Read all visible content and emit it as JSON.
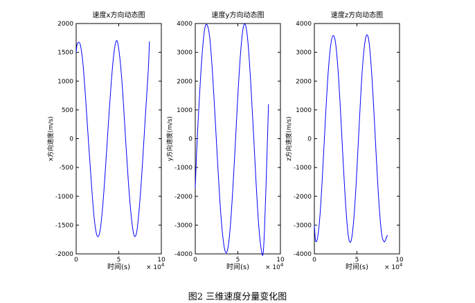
{
  "caption": "图2  三维速度分量变化图",
  "exponent_base": "× 10",
  "exponent_power": "4",
  "chart_data": [
    {
      "type": "line",
      "title": "速度x方向动态图",
      "xlabel": "时间(s)",
      "ylabel": "x方向速度(m/s)",
      "xlim": [
        0,
        10
      ],
      "x_scale_note": "x values in units of 10^4 s",
      "ylim": [
        -2000,
        2000
      ],
      "xticks": [
        "0",
        "5",
        "10"
      ],
      "yticks": [
        "-2000",
        "-1500",
        "-1000",
        "-500",
        "0",
        "500",
        "1000",
        "1500",
        "2000"
      ],
      "series": [
        {
          "color": "#0000ff",
          "x": [
            0,
            0.14,
            0.47,
            0.8,
            1.13,
            1.47,
            1.8,
            2.13,
            2.47,
            2.8,
            3.13,
            3.47,
            3.8,
            4.13,
            4.47,
            4.8,
            5.13,
            5.47,
            5.8,
            6.13,
            6.47,
            6.8,
            7.13,
            7.47,
            7.8,
            8.13,
            8.47,
            8.6
          ],
          "y": [
            1500,
            1650,
            1640,
            1300,
            650,
            -100,
            -800,
            -1400,
            -1690,
            -1600,
            -1150,
            -450,
            300,
            1000,
            1530,
            1700,
            1400,
            800,
            0,
            -750,
            -1350,
            -1680,
            -1600,
            -1100,
            -400,
            400,
            1200,
            1690
          ]
        }
      ]
    },
    {
      "type": "line",
      "title": "速度y方向动态图",
      "xlabel": "时间(s)",
      "ylabel": "y方向速度(m/s)",
      "xlim": [
        0,
        10
      ],
      "x_scale_note": "x values in units of 10^4 s",
      "ylim": [
        -4000,
        4000
      ],
      "xticks": [
        "0",
        "5",
        "10"
      ],
      "yticks": [
        "-4000",
        "-3000",
        "-2000",
        "-1000",
        "0",
        "1000",
        "2000",
        "3000",
        "4000"
      ],
      "series": [
        {
          "color": "#0000ff",
          "x": [
            0,
            0.2,
            0.5,
            0.8,
            1.1,
            1.4,
            1.7,
            2.0,
            2.3,
            2.6,
            2.9,
            3.2,
            3.5,
            3.8,
            4.1,
            4.4,
            4.7,
            5.0,
            5.3,
            5.6,
            5.9,
            6.2,
            6.5,
            6.8,
            7.1,
            7.4,
            7.7,
            8.0,
            8.3,
            8.6
          ],
          "y": [
            -1700,
            -200,
            1500,
            2900,
            3800,
            3950,
            3500,
            2400,
            900,
            -700,
            -2200,
            -3300,
            -3900,
            -3850,
            -3100,
            -1800,
            -200,
            1500,
            2900,
            3800,
            3950,
            3300,
            2000,
            400,
            -1300,
            -2800,
            -3750,
            -3900,
            -1700,
            1200
          ]
        }
      ]
    },
    {
      "type": "line",
      "title": "速度z方向动态图",
      "xlabel": "时间(s)",
      "ylabel": "z方向速度(m/s)",
      "xlim": [
        0,
        10
      ],
      "x_scale_note": "x values in units of 10^4 s",
      "ylim": [
        -4000,
        4000
      ],
      "xticks": [
        "0",
        "5",
        "10"
      ],
      "yticks": [
        "-4000",
        "-3000",
        "-2000",
        "-1000",
        "0",
        "1000",
        "2000",
        "3000",
        "4000"
      ],
      "series": [
        {
          "color": "#0000ff",
          "x": [
            0,
            0.15,
            0.4,
            0.7,
            1.0,
            1.3,
            1.6,
            1.9,
            2.2,
            2.5,
            2.8,
            3.1,
            3.4,
            3.7,
            4.0,
            4.3,
            4.6,
            4.9,
            5.2,
            5.5,
            5.8,
            6.1,
            6.4,
            6.7,
            7.0,
            7.3,
            7.6,
            7.9,
            8.2,
            8.5,
            8.6
          ],
          "y": [
            -3000,
            -3550,
            -3400,
            -2500,
            -1000,
            700,
            2200,
            3200,
            3580,
            3300,
            2300,
            800,
            -900,
            -2400,
            -3400,
            -3560,
            -2900,
            -1600,
            100,
            1800,
            3000,
            3580,
            3400,
            2400,
            900,
            -800,
            -2300,
            -3300,
            -3580,
            -3400,
            -3350
          ]
        }
      ]
    }
  ]
}
